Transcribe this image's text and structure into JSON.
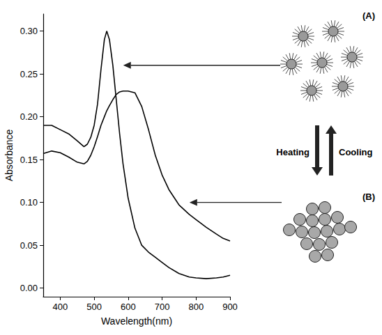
{
  "chart_data": {
    "type": "line",
    "x_label": "Wavelength(nm)",
    "y_label": "Absorbance",
    "x": [
      350,
      375,
      400,
      425,
      450,
      470,
      480,
      490,
      500,
      510,
      520,
      530,
      537,
      545,
      555,
      565,
      575,
      585,
      600,
      620,
      640,
      660,
      680,
      700,
      720,
      750,
      780,
      800,
      830,
      860,
      880,
      900
    ],
    "series": [
      {
        "color": "#000000",
        "values": [
          0.19,
          0.19,
          0.185,
          0.18,
          0.172,
          0.165,
          0.168,
          0.176,
          0.19,
          0.215,
          0.255,
          0.29,
          0.3,
          0.29,
          0.26,
          0.22,
          0.18,
          0.145,
          0.105,
          0.07,
          0.05,
          0.042,
          0.036,
          0.03,
          0.024,
          0.017,
          0.013,
          0.012,
          0.011,
          0.012,
          0.013,
          0.015
        ]
      },
      {
        "color": "#000000",
        "values": [
          0.157,
          0.16,
          0.158,
          0.153,
          0.147,
          0.145,
          0.148,
          0.155,
          0.165,
          0.177,
          0.19,
          0.2,
          0.207,
          0.213,
          0.22,
          0.226,
          0.229,
          0.23,
          0.23,
          0.228,
          0.212,
          0.185,
          0.155,
          0.132,
          0.115,
          0.097,
          0.086,
          0.08,
          0.071,
          0.063,
          0.058,
          0.055
        ]
      }
    ],
    "xlim": [
      350,
      900
    ],
    "xticks": [
      400,
      500,
      600,
      700,
      800,
      900
    ],
    "ylim": [
      -0.01,
      0.32
    ],
    "yticks": [
      {
        "value": 0,
        "label": "0.00"
      },
      {
        "value": 0.05,
        "label": "0.05"
      },
      {
        "value": 0.1,
        "label": "0.10"
      },
      {
        "value": 0.15,
        "label": "0.15"
      },
      {
        "value": 0.2,
        "label": "0.20"
      },
      {
        "value": 0.25,
        "label": "0.25"
      },
      {
        "value": 0.3,
        "label": "0.30"
      }
    ],
    "grid": false,
    "annotations": [
      "(A)",
      "(B)",
      "Heating",
      "Cooling"
    ]
  }
}
